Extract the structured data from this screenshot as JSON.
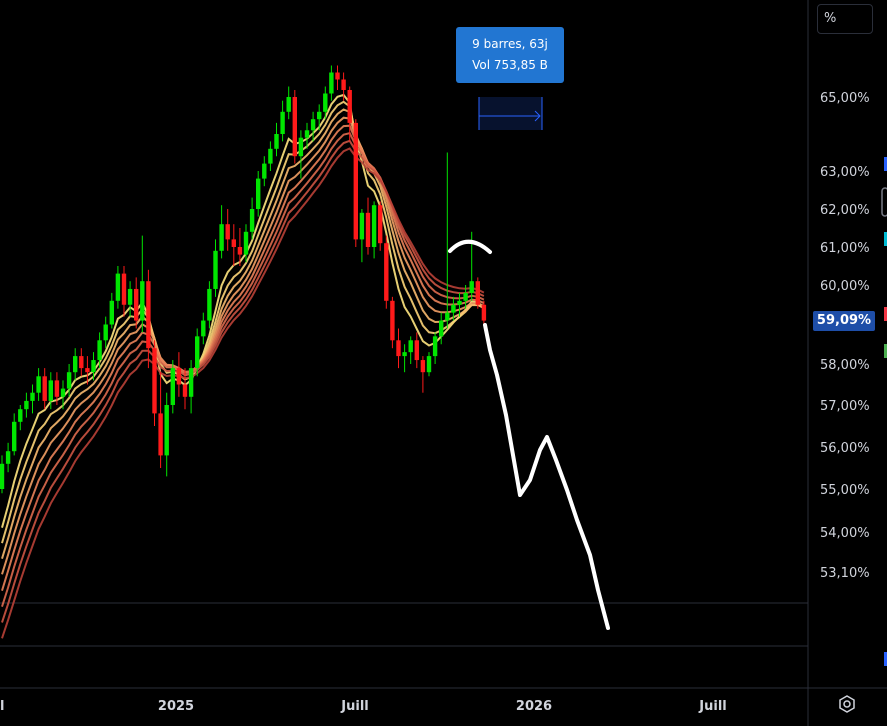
{
  "chart_data": {
    "type": "candlestick",
    "unit_label": "%",
    "y_ticks": [
      "65,00%",
      "63,00%",
      "62,00%",
      "61,00%",
      "60,00%",
      "58,00%",
      "57,00%",
      "56,00%",
      "55,00%",
      "54,00%",
      "53,10%"
    ],
    "y_tick_values": [
      65.0,
      63.0,
      62.0,
      61.0,
      60.0,
      58.0,
      57.0,
      56.0,
      55.0,
      54.0,
      53.1
    ],
    "current_price_label": "59,09%",
    "current_price": 59.09,
    "x_ticks": [
      "l",
      "2025",
      "Juill",
      "2026",
      "Juill"
    ],
    "measure_tooltip": {
      "line1": "9 barres, 63j",
      "line2": "Vol 753,85 B"
    },
    "candles": [
      [
        55.0,
        55.8,
        54.9,
        55.6
      ],
      [
        55.6,
        56.1,
        55.4,
        55.9
      ],
      [
        55.9,
        56.8,
        55.8,
        56.6
      ],
      [
        56.6,
        57.0,
        56.4,
        56.9
      ],
      [
        56.9,
        57.3,
        56.7,
        57.1
      ],
      [
        57.1,
        57.5,
        56.8,
        57.3
      ],
      [
        57.3,
        57.9,
        57.1,
        57.7
      ],
      [
        57.7,
        57.9,
        56.9,
        57.1
      ],
      [
        57.1,
        57.8,
        56.9,
        57.6
      ],
      [
        57.6,
        57.8,
        57.0,
        57.2
      ],
      [
        57.2,
        57.6,
        56.9,
        57.4
      ],
      [
        57.4,
        58.0,
        57.2,
        57.8
      ],
      [
        57.8,
        58.4,
        57.6,
        58.2
      ],
      [
        58.2,
        58.4,
        57.7,
        57.9
      ],
      [
        57.9,
        58.2,
        57.5,
        57.8
      ],
      [
        57.8,
        58.3,
        57.6,
        58.1
      ],
      [
        58.1,
        58.8,
        57.9,
        58.6
      ],
      [
        58.6,
        59.2,
        58.4,
        59.0
      ],
      [
        59.0,
        59.8,
        58.9,
        59.6
      ],
      [
        59.6,
        60.5,
        59.4,
        60.3
      ],
      [
        60.3,
        60.5,
        59.2,
        59.5
      ],
      [
        59.5,
        60.1,
        59.2,
        59.9
      ],
      [
        59.9,
        60.2,
        58.9,
        59.1
      ],
      [
        59.1,
        61.3,
        58.8,
        60.1
      ],
      [
        60.1,
        60.4,
        57.9,
        58.4
      ],
      [
        58.4,
        58.6,
        56.5,
        56.8
      ],
      [
        56.8,
        57.8,
        55.5,
        55.8
      ],
      [
        55.8,
        57.3,
        55.3,
        57.0
      ],
      [
        57.0,
        58.1,
        56.8,
        57.9
      ],
      [
        57.9,
        58.3,
        57.2,
        57.5
      ],
      [
        57.5,
        57.9,
        56.9,
        57.2
      ],
      [
        57.2,
        58.1,
        56.8,
        57.9
      ],
      [
        57.9,
        58.9,
        57.7,
        58.7
      ],
      [
        58.7,
        59.3,
        58.5,
        59.1
      ],
      [
        59.1,
        60.1,
        58.9,
        59.9
      ],
      [
        59.9,
        61.2,
        59.7,
        60.9
      ],
      [
        60.9,
        62.1,
        60.7,
        61.6
      ],
      [
        61.6,
        62.0,
        60.9,
        61.2
      ],
      [
        61.2,
        61.6,
        60.5,
        61.0
      ],
      [
        61.0,
        61.5,
        60.5,
        60.8
      ],
      [
        60.8,
        61.6,
        60.6,
        61.4
      ],
      [
        61.4,
        62.3,
        61.2,
        62.0
      ],
      [
        62.0,
        63.0,
        61.8,
        62.8
      ],
      [
        62.8,
        63.4,
        62.6,
        63.2
      ],
      [
        63.2,
        63.8,
        63.0,
        63.6
      ],
      [
        63.6,
        64.3,
        63.4,
        64.0
      ],
      [
        64.0,
        64.9,
        63.8,
        64.6
      ],
      [
        64.6,
        65.3,
        64.4,
        65.0
      ],
      [
        65.0,
        65.2,
        63.2,
        63.4
      ],
      [
        63.4,
        64.1,
        62.8,
        63.9
      ],
      [
        63.9,
        64.3,
        63.6,
        64.1
      ],
      [
        64.1,
        64.6,
        63.8,
        64.4
      ],
      [
        64.4,
        64.8,
        64.1,
        64.6
      ],
      [
        64.6,
        65.3,
        64.4,
        65.1
      ],
      [
        65.1,
        65.9,
        64.9,
        65.7
      ],
      [
        65.7,
        65.9,
        65.2,
        65.5
      ],
      [
        65.5,
        65.7,
        64.9,
        65.2
      ],
      [
        65.2,
        65.3,
        63.8,
        64.3
      ],
      [
        64.3,
        64.4,
        61.0,
        61.2
      ],
      [
        61.2,
        62.0,
        60.6,
        61.9
      ],
      [
        61.9,
        62.3,
        60.8,
        61.0
      ],
      [
        61.0,
        62.2,
        60.7,
        62.1
      ],
      [
        62.1,
        62.2,
        60.9,
        61.1
      ],
      [
        61.1,
        61.3,
        59.4,
        59.6
      ],
      [
        59.6,
        59.7,
        58.4,
        58.6
      ],
      [
        58.6,
        58.9,
        57.9,
        58.2
      ],
      [
        58.2,
        58.5,
        57.8,
        58.3
      ],
      [
        58.3,
        58.7,
        58.0,
        58.6
      ],
      [
        58.6,
        58.8,
        57.9,
        58.1
      ],
      [
        58.1,
        58.2,
        57.3,
        57.8
      ],
      [
        57.8,
        58.3,
        57.7,
        58.2
      ],
      [
        58.2,
        58.8,
        58.0,
        58.7
      ],
      [
        58.7,
        59.3,
        58.5,
        59.1
      ],
      [
        59.1,
        63.5,
        58.9,
        59.3
      ],
      [
        59.3,
        59.7,
        59.1,
        59.5
      ],
      [
        59.5,
        59.8,
        59.2,
        59.6
      ],
      [
        59.6,
        60.0,
        59.4,
        59.8
      ],
      [
        59.8,
        61.4,
        59.6,
        60.1
      ],
      [
        60.1,
        60.2,
        59.4,
        59.5
      ],
      [
        59.5,
        59.6,
        59.0,
        59.1
      ]
    ],
    "ribbon_count": 8
  }
}
